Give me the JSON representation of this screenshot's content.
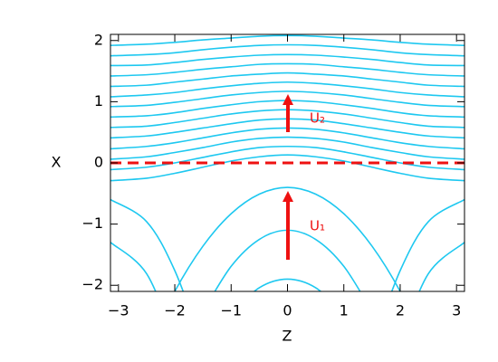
{
  "chart_data": {
    "type": "line",
    "xlabel": "Z",
    "ylabel": "X",
    "xlim": [
      -3.14159,
      3.14159
    ],
    "ylim": [
      -2.1,
      2.1
    ],
    "xticks": [
      {
        "value": -3,
        "label": "−3"
      },
      {
        "value": -2,
        "label": "−2"
      },
      {
        "value": -1,
        "label": "−1"
      },
      0,
      1,
      2,
      3
    ],
    "yticks": [
      {
        "value": -2,
        "label": "−2"
      },
      {
        "value": -1,
        "label": "−1"
      },
      0,
      1,
      2
    ],
    "color": "#1ec8f0",
    "reference_line": {
      "value": 0,
      "color": "#ee1111"
    },
    "annotations": [
      "U₂",
      "U₁"
    ],
    "x": [
      -3.14,
      -2.5,
      -2,
      -1.5,
      -1,
      -0.5,
      0,
      0.5,
      1,
      1.5,
      2,
      2.5,
      3.14
    ],
    "series": [
      {
        "values": [
          -0.29,
          -0.25,
          -0.17,
          -0.07,
          0.03,
          0.1,
          0.13,
          0.1,
          0.03,
          -0.07,
          -0.17,
          -0.25,
          -0.29
        ]
      },
      {
        "values": [
          -0.11,
          -0.07,
          0.0,
          0.09,
          0.18,
          0.25,
          0.27,
          0.25,
          0.18,
          0.09,
          0.0,
          -0.07,
          -0.11
        ]
      },
      {
        "values": [
          0.06,
          0.1,
          0.17,
          0.25,
          0.34,
          0.4,
          0.42,
          0.4,
          0.34,
          0.25,
          0.17,
          0.1,
          0.06
        ]
      },
      {
        "values": [
          0.23,
          0.27,
          0.33,
          0.41,
          0.49,
          0.55,
          0.57,
          0.55,
          0.49,
          0.41,
          0.33,
          0.27,
          0.23
        ]
      },
      {
        "values": [
          0.41,
          0.44,
          0.5,
          0.57,
          0.64,
          0.7,
          0.72,
          0.7,
          0.64,
          0.57,
          0.5,
          0.44,
          0.41
        ]
      },
      {
        "values": [
          0.58,
          0.6,
          0.66,
          0.73,
          0.8,
          0.85,
          0.87,
          0.85,
          0.8,
          0.73,
          0.66,
          0.6,
          0.58
        ]
      },
      {
        "values": [
          0.75,
          0.77,
          0.82,
          0.89,
          0.95,
          1.0,
          1.02,
          1.0,
          0.95,
          0.89,
          0.82,
          0.77,
          0.75
        ]
      },
      {
        "values": [
          0.92,
          0.94,
          0.99,
          1.05,
          1.11,
          1.15,
          1.17,
          1.15,
          1.11,
          1.05,
          0.99,
          0.94,
          0.92
        ]
      },
      {
        "values": [
          1.08,
          1.11,
          1.15,
          1.21,
          1.26,
          1.3,
          1.32,
          1.3,
          1.26,
          1.21,
          1.15,
          1.11,
          1.08
        ]
      },
      {
        "values": [
          1.25,
          1.27,
          1.32,
          1.37,
          1.42,
          1.45,
          1.47,
          1.45,
          1.42,
          1.37,
          1.32,
          1.27,
          1.25
        ]
      },
      {
        "values": [
          1.42,
          1.44,
          1.48,
          1.53,
          1.57,
          1.61,
          1.62,
          1.61,
          1.57,
          1.53,
          1.48,
          1.44,
          1.42
        ]
      },
      {
        "values": [
          1.59,
          1.6,
          1.64,
          1.69,
          1.73,
          1.76,
          1.77,
          1.76,
          1.73,
          1.69,
          1.64,
          1.6,
          1.59
        ]
      },
      {
        "values": [
          1.75,
          1.77,
          1.8,
          1.85,
          1.89,
          1.92,
          1.93,
          1.92,
          1.89,
          1.85,
          1.8,
          1.77,
          1.75
        ]
      },
      {
        "values": [
          1.92,
          1.94,
          1.97,
          2.01,
          2.04,
          2.07,
          2.08,
          2.07,
          2.04,
          2.01,
          1.97,
          1.94,
          1.92
        ]
      },
      {
        "values": [
          null,
          -3.06,
          -2.1,
          -1.36,
          -0.83,
          -0.51,
          -0.4,
          -0.51,
          -0.83,
          -1.36,
          -2.1,
          -3.06,
          null
        ]
      },
      {
        "values": [
          null,
          null,
          null,
          -2.43,
          -1.69,
          -1.25,
          -1.1,
          -1.25,
          -1.69,
          -2.43,
          null,
          null,
          null
        ]
      },
      {
        "values": [
          null,
          null,
          null,
          null,
          -2.46,
          -2.04,
          -1.9,
          -2.04,
          -2.46,
          null,
          null,
          null,
          null
        ]
      },
      {
        "values": [
          -0.6,
          -0.96,
          -1.76,
          -3.0,
          null,
          null,
          null,
          null,
          null,
          -3.0,
          -1.76,
          -0.96,
          -0.6
        ]
      },
      {
        "values": [
          -1.3,
          -1.81,
          -2.92,
          null,
          null,
          null,
          null,
          null,
          null,
          null,
          -2.92,
          -1.81,
          -1.3
        ]
      }
    ]
  }
}
